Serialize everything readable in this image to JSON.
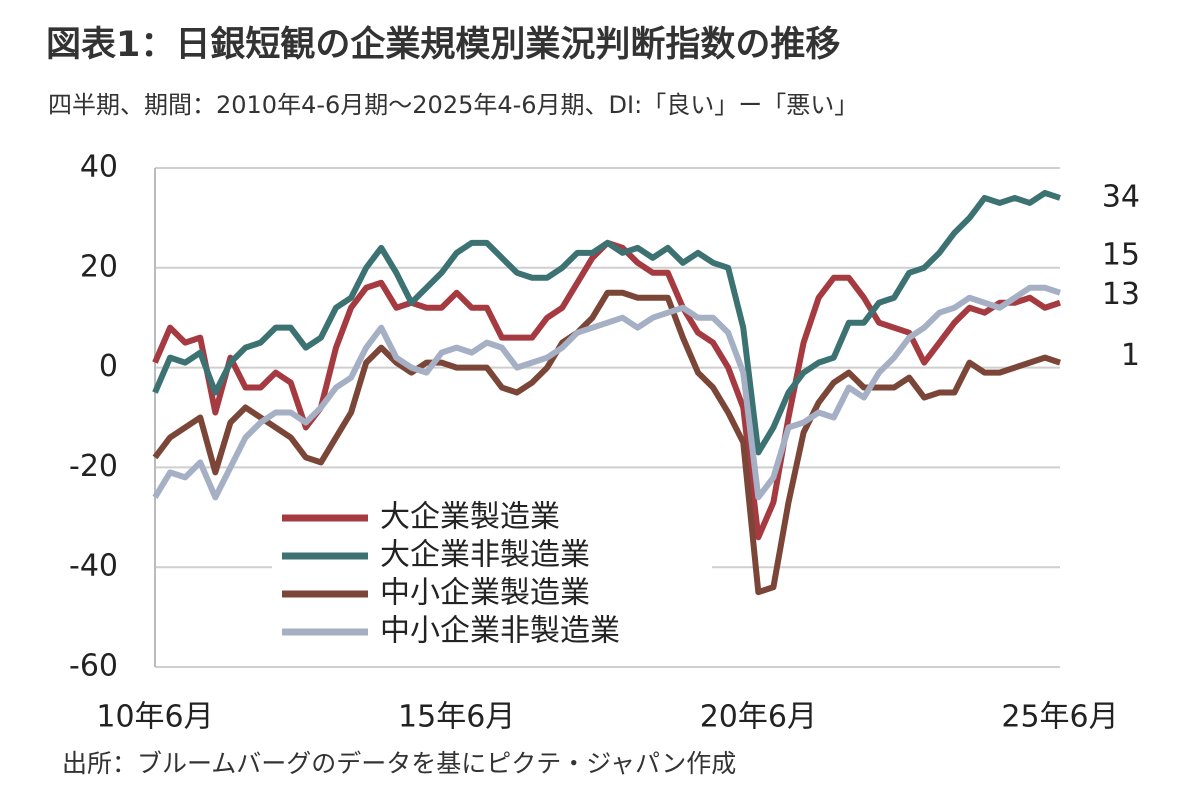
{
  "chart_data": {
    "type": "line",
    "title": "図表1：日銀短観の企業規模別業況判断指数の推移",
    "subtitle": "四半期、期間：2010年4-6月期～2025年4-6月期、DI:「良い」ー「悪い」",
    "source": "出所：ブルームバーグのデータを基にピクテ・ジャパン作成",
    "categories": [
      "10年6月",
      null,
      null,
      null,
      null,
      null,
      null,
      null,
      null,
      null,
      null,
      null,
      null,
      null,
      null,
      null,
      null,
      null,
      null,
      null,
      "15年6月",
      null,
      null,
      null,
      null,
      null,
      null,
      null,
      null,
      null,
      null,
      null,
      null,
      null,
      null,
      null,
      null,
      null,
      null,
      null,
      "20年6月",
      null,
      null,
      null,
      null,
      null,
      null,
      null,
      null,
      null,
      null,
      null,
      null,
      null,
      null,
      null,
      null,
      null,
      null,
      null,
      "25年6月"
    ],
    "ylim": [
      -60,
      40
    ],
    "yticks": [
      -60,
      -40,
      -20,
      0,
      20,
      40
    ],
    "grid": true,
    "series": [
      {
        "name": "大企業製造業",
        "color": "#a53b40",
        "values": [
          1,
          8,
          5,
          6,
          -9,
          2,
          -4,
          -4,
          -1,
          -3,
          -12,
          -8,
          4,
          12,
          16,
          17,
          12,
          13,
          12,
          12,
          15,
          12,
          12,
          6,
          6,
          6,
          10,
          12,
          17,
          22,
          25,
          24,
          21,
          19,
          19,
          12,
          7,
          5,
          0,
          -8,
          -34,
          -27,
          -10,
          5,
          14,
          18,
          18,
          14,
          9,
          8,
          7,
          1,
          5,
          9,
          12,
          11,
          13,
          13,
          14,
          12,
          13
        ]
      },
      {
        "name": "大企業非製造業",
        "color": "#3d7272",
        "values": [
          -5,
          2,
          1,
          3,
          -5,
          1,
          4,
          5,
          8,
          8,
          4,
          6,
          12,
          14,
          20,
          24,
          19,
          13,
          16,
          19,
          23,
          25,
          25,
          22,
          19,
          18,
          18,
          20,
          23,
          23,
          25,
          23,
          24,
          22,
          24,
          21,
          23,
          21,
          20,
          8,
          -17,
          -12,
          -5,
          -1,
          1,
          2,
          9,
          9,
          13,
          14,
          19,
          20,
          23,
          27,
          30,
          34,
          33,
          34,
          33,
          35,
          34
        ]
      },
      {
        "name": "中小企業製造業",
        "color": "#7b4637",
        "values": [
          -18,
          -14,
          -12,
          -10,
          -21,
          -11,
          -8,
          -10,
          -12,
          -14,
          -18,
          -19,
          -14,
          -9,
          1,
          4,
          1,
          -1,
          1,
          1,
          0,
          0,
          0,
          -4,
          -5,
          -3,
          0,
          5,
          7,
          10,
          15,
          15,
          14,
          14,
          14,
          6,
          -1,
          -4,
          -9,
          -15,
          -45,
          -44,
          -27,
          -13,
          -7,
          -3,
          -1,
          -4,
          -4,
          -4,
          -2,
          -6,
          -5,
          -5,
          1,
          -1,
          -1,
          0,
          1,
          2,
          1
        ]
      },
      {
        "name": "中小企業非製造業",
        "color": "#a5b0c5",
        "values": [
          -26,
          -21,
          -22,
          -19,
          -26,
          -20,
          -14,
          -11,
          -9,
          -9,
          -11,
          -8,
          -4,
          -2,
          4,
          8,
          2,
          0,
          -1,
          3,
          4,
          3,
          5,
          4,
          0,
          1,
          2,
          4,
          7,
          8,
          9,
          10,
          8,
          10,
          11,
          12,
          10,
          10,
          7,
          -1,
          -26,
          -22,
          -12,
          -11,
          -9,
          -10,
          -4,
          -6,
          -1,
          2,
          6,
          8,
          11,
          12,
          14,
          13,
          12,
          14,
          16,
          16,
          15
        ]
      }
    ]
  }
}
